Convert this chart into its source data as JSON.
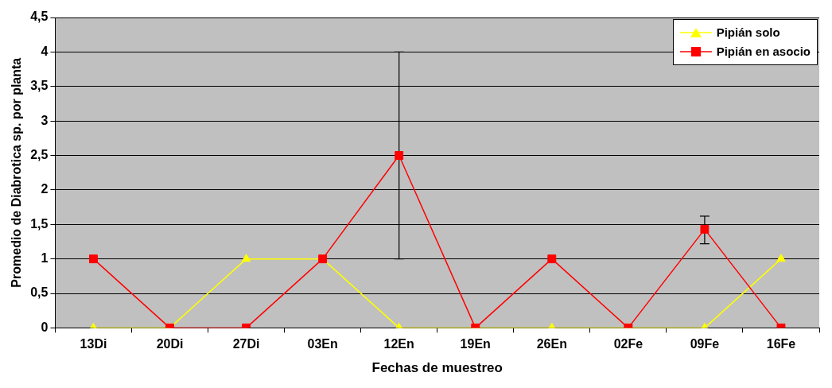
{
  "chart_data": {
    "type": "line",
    "xlabel": "Fechas de muestreo",
    "ylabel": "Promedio de Diabrotica sp. por planta",
    "categories": [
      "13Di",
      "20Di",
      "27Di",
      "03En",
      "12En",
      "19En",
      "26En",
      "02Fe",
      "09Fe",
      "16Fe"
    ],
    "series": [
      {
        "name": "Pipián solo",
        "color": "#ffff00",
        "marker": "triangle",
        "values": [
          0,
          0,
          1,
          1,
          0,
          0,
          0,
          0,
          0,
          1
        ]
      },
      {
        "name": "Pipián en asocio",
        "color": "#ff0000",
        "marker": "square",
        "values": [
          1,
          0,
          0,
          1,
          2.5,
          0,
          1,
          0,
          1.43,
          0
        ],
        "errors": [
          null,
          null,
          null,
          null,
          [
            1,
            4
          ],
          null,
          null,
          null,
          [
            1.22,
            1.62
          ],
          null
        ]
      }
    ],
    "ylim": [
      0,
      4.5
    ],
    "yticks": [
      0,
      {
        "value": 0.5,
        "label": "0,5"
      },
      1,
      {
        "value": 1.5,
        "label": "1,5"
      },
      2,
      {
        "value": 2.5,
        "label": "2,5"
      },
      3,
      {
        "value": 3.5,
        "label": "3,5"
      },
      4,
      {
        "value": 4.5,
        "label": "4,5"
      }
    ],
    "grid": "y",
    "legend": "top right"
  }
}
